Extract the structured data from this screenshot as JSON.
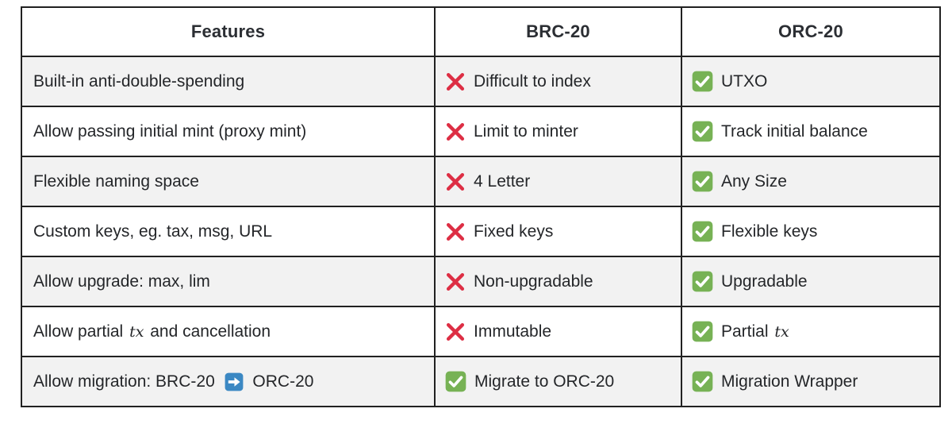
{
  "table": {
    "columns": [
      {
        "label": "Features"
      },
      {
        "label": "BRC-20"
      },
      {
        "label": "ORC-20"
      }
    ],
    "rows": [
      {
        "feature": [
          {
            "type": "text",
            "text": "Built-in anti-double-spending"
          }
        ],
        "brc": {
          "icon": "cross",
          "parts": [
            {
              "type": "text",
              "text": "Difficult to index"
            }
          ]
        },
        "orc": {
          "icon": "check",
          "parts": [
            {
              "type": "text",
              "text": "UTXO"
            }
          ]
        }
      },
      {
        "feature": [
          {
            "type": "text",
            "text": "Allow passing initial mint (proxy mint)"
          }
        ],
        "brc": {
          "icon": "cross",
          "parts": [
            {
              "type": "text",
              "text": "Limit to minter"
            }
          ]
        },
        "orc": {
          "icon": "check",
          "parts": [
            {
              "type": "text",
              "text": "Track initial balance"
            }
          ]
        }
      },
      {
        "feature": [
          {
            "type": "text",
            "text": "Flexible naming space"
          }
        ],
        "brc": {
          "icon": "cross",
          "parts": [
            {
              "type": "text",
              "text": "4 Letter"
            }
          ]
        },
        "orc": {
          "icon": "check",
          "parts": [
            {
              "type": "text",
              "text": "Any Size"
            }
          ]
        }
      },
      {
        "feature": [
          {
            "type": "text",
            "text": "Custom keys, eg. tax, msg, URL"
          }
        ],
        "brc": {
          "icon": "cross",
          "parts": [
            {
              "type": "text",
              "text": "Fixed keys"
            }
          ]
        },
        "orc": {
          "icon": "check",
          "parts": [
            {
              "type": "text",
              "text": "Flexible keys"
            }
          ]
        }
      },
      {
        "feature": [
          {
            "type": "text",
            "text": "Allow upgrade: max, lim"
          }
        ],
        "brc": {
          "icon": "cross",
          "parts": [
            {
              "type": "text",
              "text": "Non-upgradable"
            }
          ]
        },
        "orc": {
          "icon": "check",
          "parts": [
            {
              "type": "text",
              "text": "Upgradable"
            }
          ]
        }
      },
      {
        "feature": [
          {
            "type": "text",
            "text": "Allow partial "
          },
          {
            "type": "math",
            "text": "tx"
          },
          {
            "type": "text",
            "text": " and cancellation"
          }
        ],
        "brc": {
          "icon": "cross",
          "parts": [
            {
              "type": "text",
              "text": "Immutable"
            }
          ]
        },
        "orc": {
          "icon": "check",
          "parts": [
            {
              "type": "text",
              "text": "Partial "
            },
            {
              "type": "math",
              "text": "tx"
            }
          ]
        }
      },
      {
        "feature": [
          {
            "type": "text",
            "text": "Allow migration: BRC-20 "
          },
          {
            "type": "icon",
            "icon": "arrow-right"
          },
          {
            "type": "text",
            "text": " ORC-20"
          }
        ],
        "brc": {
          "icon": "check",
          "parts": [
            {
              "type": "text",
              "text": "Migrate to ORC-20"
            }
          ]
        },
        "orc": {
          "icon": "check",
          "parts": [
            {
              "type": "text",
              "text": "Migration Wrapper"
            }
          ]
        }
      }
    ]
  },
  "icons": {
    "cross": "✕",
    "check": "✓",
    "arrow-right": "➡"
  },
  "colors": {
    "cross": "#dd2e44",
    "check_bg": "#77b255",
    "arrow_bg": "#3b88c3",
    "icon_glyph": "#ffffff",
    "row_alt_bg": "#f2f2f2",
    "border": "#212121",
    "text": "#242629"
  }
}
